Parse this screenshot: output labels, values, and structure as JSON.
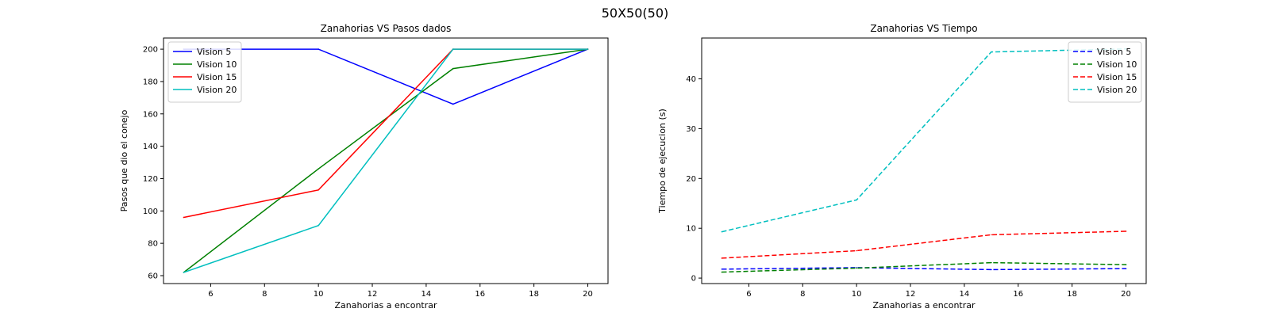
{
  "figure": {
    "title": "50X50(50)"
  },
  "chart_data": [
    {
      "type": "line",
      "title": "Zanahorias VS Pasos dados",
      "xlabel": "Zanahorias a encontrar",
      "ylabel": "Pasos que dio el conejo",
      "x": [
        5,
        10,
        15,
        20
      ],
      "xlim": [
        4.25,
        20.75
      ],
      "ylim": [
        55.1,
        206.9
      ],
      "xticks": [
        6,
        8,
        10,
        12,
        14,
        16,
        18,
        20
      ],
      "yticks": [
        60,
        80,
        100,
        120,
        140,
        160,
        180,
        200
      ],
      "line_style": "solid",
      "legend_position": "upper-left",
      "grid": false,
      "series": [
        {
          "name": "Vision 5",
          "color": "#0000ff",
          "values": [
            200,
            200,
            166,
            200
          ]
        },
        {
          "name": "Vision 10",
          "color": "#008000",
          "values": [
            62,
            126,
            188,
            200
          ]
        },
        {
          "name": "Vision 15",
          "color": "#ff0000",
          "values": [
            96,
            113,
            200,
            200
          ]
        },
        {
          "name": "Vision 20",
          "color": "#00bfbf",
          "values": [
            62,
            91,
            200,
            200
          ]
        }
      ]
    },
    {
      "type": "line",
      "title": "Zanahorias VS Tiempo",
      "xlabel": "Zanahorias a encontrar",
      "ylabel": "Tiempo de ejecucion (s)",
      "x": [
        5,
        10,
        15,
        20
      ],
      "xlim": [
        4.25,
        20.75
      ],
      "ylim": [
        -1.1,
        48.2
      ],
      "xticks": [
        6,
        8,
        10,
        12,
        14,
        16,
        18,
        20
      ],
      "yticks": [
        0,
        10,
        20,
        30,
        40
      ],
      "line_style": "dashed",
      "legend_position": "upper-right",
      "grid": false,
      "series": [
        {
          "name": "Vision 5",
          "color": "#0000ff",
          "values": [
            1.8,
            2.1,
            1.7,
            1.9
          ]
        },
        {
          "name": "Vision 10",
          "color": "#008000",
          "values": [
            1.2,
            2.0,
            3.1,
            2.7
          ]
        },
        {
          "name": "Vision 15",
          "color": "#ff0000",
          "values": [
            4.0,
            5.5,
            8.7,
            9.4
          ]
        },
        {
          "name": "Vision 20",
          "color": "#00bfbf",
          "values": [
            9.3,
            15.7,
            45.4,
            46.0
          ]
        }
      ]
    }
  ]
}
